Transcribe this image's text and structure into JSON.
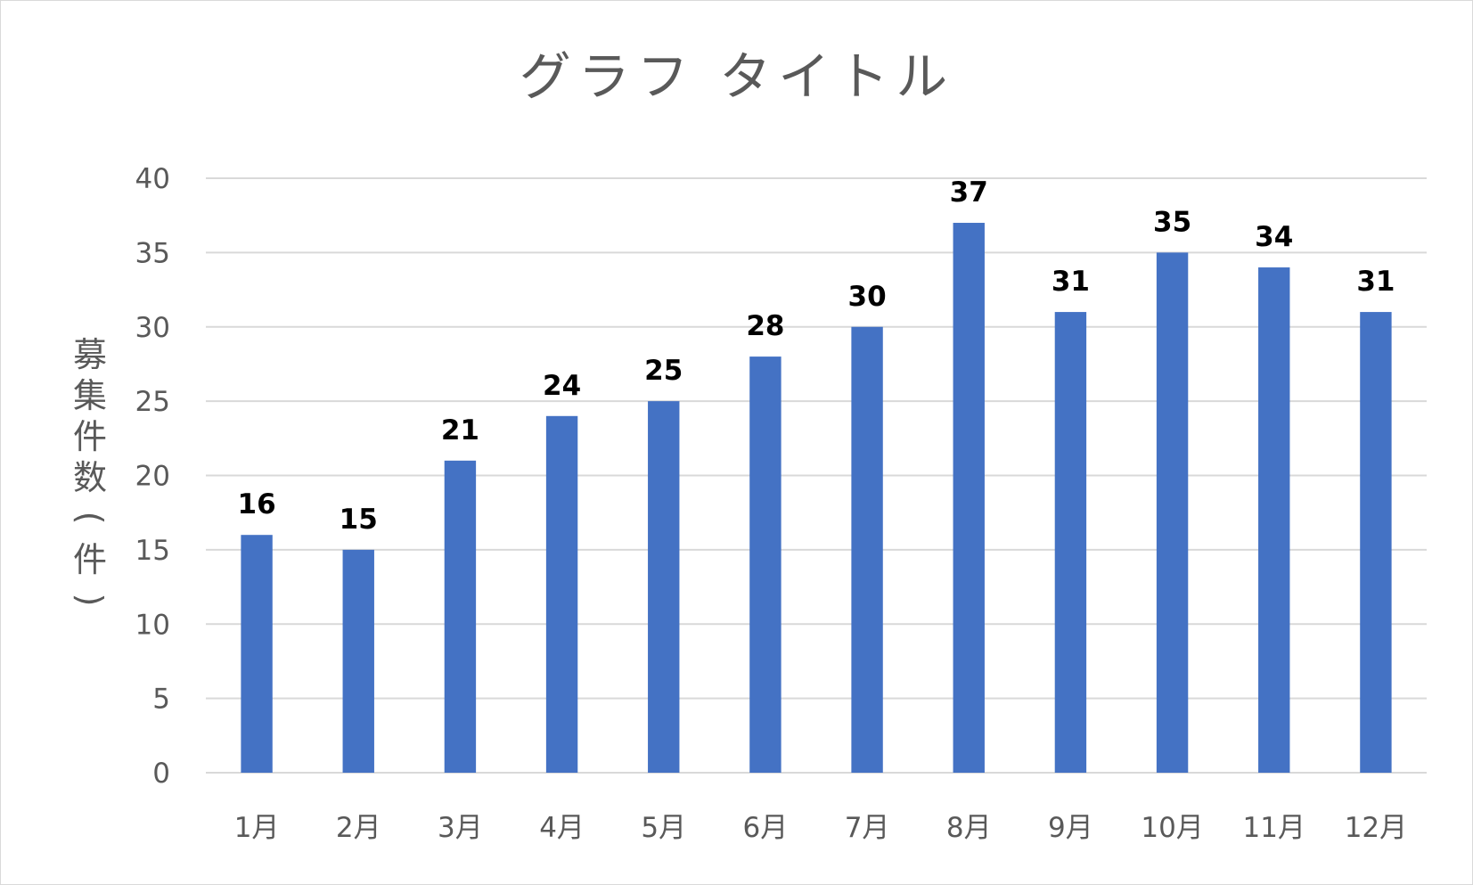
{
  "chart_data": {
    "type": "bar",
    "title": "グラフ タイトル",
    "xlabel": "",
    "ylabel": "募集件数（件）",
    "categories": [
      "1月",
      "2月",
      "3月",
      "4月",
      "5月",
      "6月",
      "7月",
      "8月",
      "9月",
      "10月",
      "11月",
      "12月"
    ],
    "values": [
      16,
      15,
      21,
      24,
      25,
      28,
      30,
      37,
      31,
      35,
      34,
      31
    ],
    "ylim": [
      0,
      40
    ],
    "yticks": [
      0,
      5,
      10,
      15,
      20,
      25,
      30,
      35,
      40
    ],
    "grid": true,
    "legend": false,
    "data_labels": true,
    "bar_color": "#4472c4",
    "grid_color": "#d9d9d9"
  }
}
